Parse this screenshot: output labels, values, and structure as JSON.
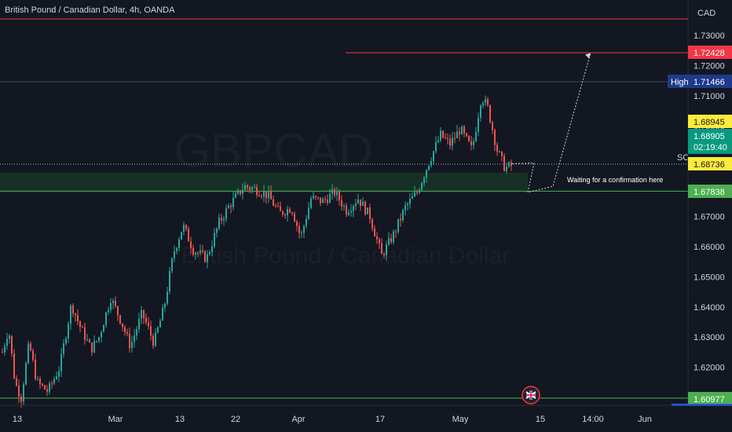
{
  "header": {
    "title": "British Pound / Canadian Dollar, 4h, OANDA"
  },
  "watermark": {
    "symbol": "GBPCAD",
    "name": "British Pound / Canadian Dollar"
  },
  "axis": {
    "currency": "CAD"
  },
  "colors": {
    "background": "#131722",
    "up": "#26a69a",
    "down": "#ef5350",
    "red_line": "#f23645",
    "green_line": "#4caf50",
    "zone": "#1a3a27",
    "high_tag": "#1e3a8a",
    "yellow_tag": "#ffeb3b",
    "teal_tag": "#089981"
  },
  "chart_data": {
    "type": "candlestick",
    "title": "British Pound / Canadian Dollar, 4h, OANDA",
    "ylim": [
      1.6085,
      1.7355
    ],
    "y_ticks": [
      "1.73000",
      "1.72000",
      "1.71000",
      "1.70000",
      "1.67000",
      "1.66000",
      "1.65000",
      "1.64000",
      "1.63000",
      "1.62000"
    ],
    "x_ticks": [
      "13",
      "Mar",
      "13",
      "22",
      "Apr",
      "17",
      "May",
      "15",
      "14:00",
      "Jun"
    ],
    "price_path": [
      {
        "x": 2,
        "y": 1.625
      },
      {
        "x": 10,
        "y": 1.633
      },
      {
        "x": 18,
        "y": 1.615
      },
      {
        "x": 26,
        "y": 1.61
      },
      {
        "x": 36,
        "y": 1.628
      },
      {
        "x": 46,
        "y": 1.615
      },
      {
        "x": 60,
        "y": 1.612
      },
      {
        "x": 75,
        "y": 1.62
      },
      {
        "x": 90,
        "y": 1.641
      },
      {
        "x": 100,
        "y": 1.634
      },
      {
        "x": 115,
        "y": 1.626
      },
      {
        "x": 125,
        "y": 1.63
      },
      {
        "x": 140,
        "y": 1.643
      },
      {
        "x": 152,
        "y": 1.636
      },
      {
        "x": 165,
        "y": 1.627
      },
      {
        "x": 180,
        "y": 1.638
      },
      {
        "x": 195,
        "y": 1.628
      },
      {
        "x": 208,
        "y": 1.64
      },
      {
        "x": 220,
        "y": 1.658
      },
      {
        "x": 232,
        "y": 1.667
      },
      {
        "x": 245,
        "y": 1.659
      },
      {
        "x": 262,
        "y": 1.656
      },
      {
        "x": 278,
        "y": 1.668
      },
      {
        "x": 292,
        "y": 1.674
      },
      {
        "x": 310,
        "y": 1.68
      },
      {
        "x": 325,
        "y": 1.679
      },
      {
        "x": 340,
        "y": 1.677
      },
      {
        "x": 355,
        "y": 1.671
      },
      {
        "x": 370,
        "y": 1.673
      },
      {
        "x": 382,
        "y": 1.663
      },
      {
        "x": 395,
        "y": 1.676
      },
      {
        "x": 410,
        "y": 1.675
      },
      {
        "x": 425,
        "y": 1.678
      },
      {
        "x": 440,
        "y": 1.672
      },
      {
        "x": 455,
        "y": 1.676
      },
      {
        "x": 470,
        "y": 1.67
      },
      {
        "x": 485,
        "y": 1.657
      },
      {
        "x": 500,
        "y": 1.664
      },
      {
        "x": 515,
        "y": 1.673
      },
      {
        "x": 530,
        "y": 1.678
      },
      {
        "x": 545,
        "y": 1.688
      },
      {
        "x": 560,
        "y": 1.697
      },
      {
        "x": 572,
        "y": 1.694
      },
      {
        "x": 585,
        "y": 1.699
      },
      {
        "x": 600,
        "y": 1.692
      },
      {
        "x": 612,
        "y": 1.71
      },
      {
        "x": 620,
        "y": 1.706
      },
      {
        "x": 632,
        "y": 1.692
      },
      {
        "x": 642,
        "y": 1.686
      },
      {
        "x": 652,
        "y": 1.687
      }
    ],
    "levels": [
      {
        "name": "top-red-line",
        "price": 1.7355,
        "kind": "red"
      },
      {
        "name": "target-line",
        "price": 1.72428,
        "kind": "red"
      },
      {
        "name": "high-line",
        "price": 1.71466,
        "kind": "gray"
      },
      {
        "name": "current-line",
        "price": 1.68736,
        "kind": "dotted"
      },
      {
        "name": "support-line",
        "price": 1.67838,
        "kind": "green"
      },
      {
        "name": "bottom-green-line",
        "price": 1.60977,
        "kind": "green"
      }
    ],
    "zone": {
      "top": 1.6845,
      "bottom": 1.678
    },
    "projection": [
      {
        "x": 652,
        "y": 1.6875
      },
      {
        "x": 680,
        "y": 1.6877
      },
      {
        "x": 672,
        "y": 1.678
      },
      {
        "x": 704,
        "y": 1.68
      },
      {
        "x": 752,
        "y": 1.7242
      }
    ],
    "projection_x_range": [
      652,
      752
    ],
    "last_x": 652
  },
  "price_tags": {
    "target": "1.72428",
    "high_label": "High",
    "high_value": "1.71466",
    "yellow_top": "1.68945",
    "current": "1.68905",
    "countdown": "02:19:40",
    "yellow_bottom": "1.68736",
    "support": "1.67838",
    "bottom": "1.60977"
  },
  "annotation": {
    "text": "Waiting for a confirmation here",
    "so_label": "SO"
  }
}
